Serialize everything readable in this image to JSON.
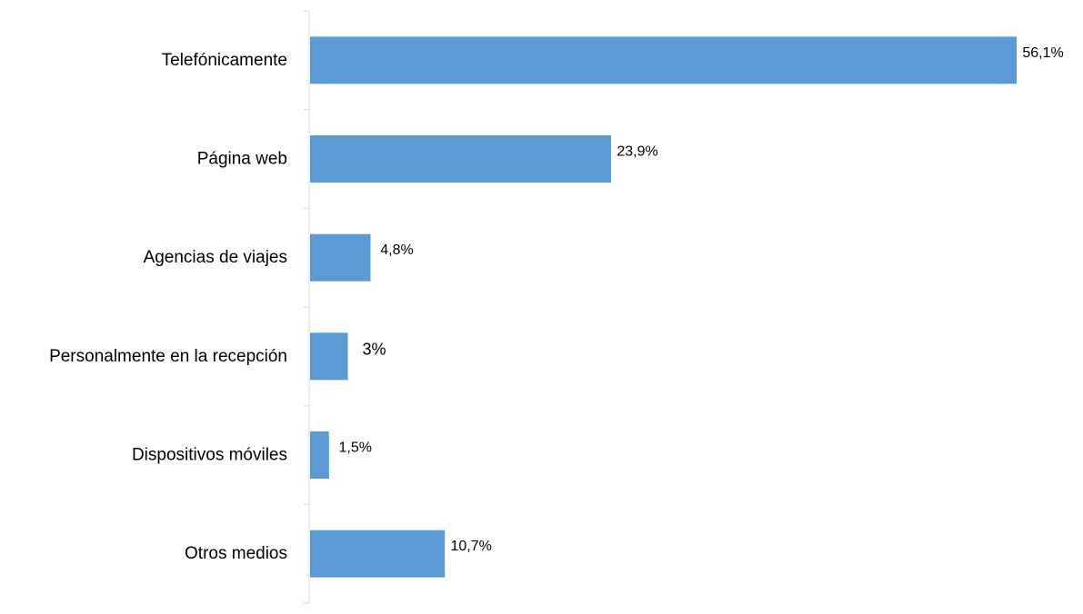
{
  "chart_data": {
    "type": "bar",
    "orientation": "horizontal",
    "title": "",
    "xlabel": "",
    "ylabel": "",
    "categories": [
      "Telefónicamente",
      "Página web",
      "Agencias de viajes",
      "Personalmente en la recepción",
      "Dispositivos móviles",
      "Otros medios"
    ],
    "values": [
      56.1,
      23.9,
      4.8,
      3,
      1.5,
      10.7
    ],
    "data_labels": [
      "56,1%",
      "23,9%",
      "4,8%",
      "3%",
      "1,5%",
      "10,7%"
    ],
    "unit": "%",
    "xlim": [
      0,
      56.1
    ],
    "grid": false,
    "legend": "none",
    "bar_color": "#5b9bd5"
  }
}
